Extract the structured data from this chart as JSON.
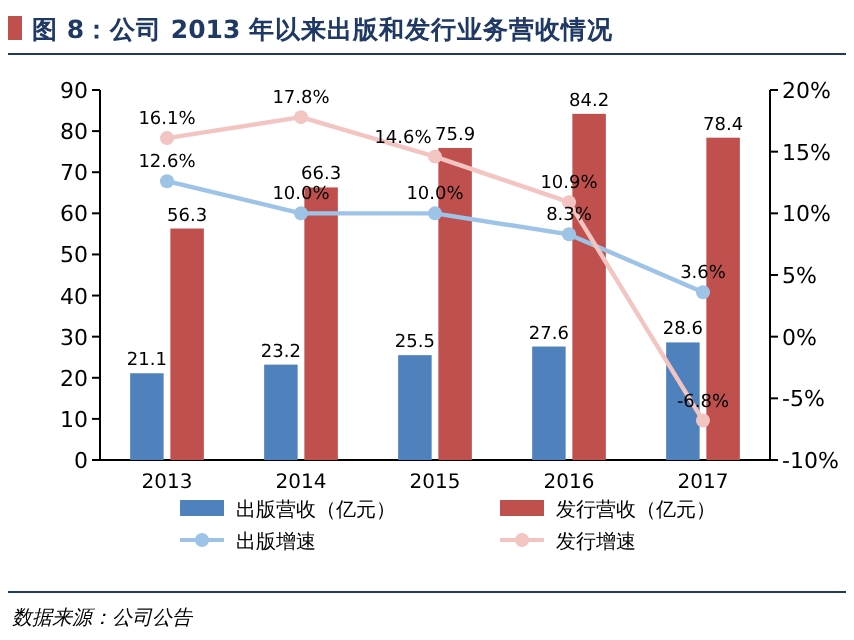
{
  "chart_data": {
    "type": "bar",
    "title": "图 8：公司 2013 年以来出版和发行业务营收情况",
    "annotations": [
      "数据来源：公司公告"
    ],
    "categories": [
      "2013",
      "2014",
      "2015",
      "2016",
      "2017"
    ],
    "series": [
      {
        "name": "出版营收（亿元）",
        "color": "#4f81bd",
        "values": [
          21.1,
          23.2,
          25.5,
          27.6,
          28.6
        ]
      },
      {
        "name": "发行营收（亿元）",
        "color": "#c0504d",
        "values": [
          56.3,
          66.3,
          75.9,
          84.2,
          78.4
        ]
      },
      {
        "name": "出版增速",
        "type": "line",
        "axis": "y2",
        "color": "#9dc3e6",
        "marker": "circle",
        "values": [
          12.6,
          10.0,
          10.0,
          8.3,
          3.6
        ],
        "value_labels": [
          "12.6%",
          "10.0%",
          "10.0%",
          "8.3%",
          "3.6%"
        ]
      },
      {
        "name": "发行增速",
        "type": "line",
        "axis": "y2",
        "color": "#f2c4c2",
        "marker": "circle",
        "values": [
          16.1,
          17.8,
          14.6,
          10.9,
          -6.8
        ],
        "value_labels": [
          "16.1%",
          "17.8%",
          "14.6%",
          "10.9%",
          "-6.8%"
        ]
      }
    ],
    "ylim": [
      0,
      90
    ],
    "yticks": [
      0,
      10,
      20,
      30,
      40,
      50,
      60,
      70,
      80,
      90
    ],
    "y2lim": [
      -10,
      20
    ],
    "y2ticks": [
      {
        "value": -10,
        "label": "-10%"
      },
      {
        "value": -5,
        "label": "-5%"
      },
      {
        "value": 0,
        "label": "0%"
      },
      {
        "value": 5,
        "label": "5%"
      },
      {
        "value": 10,
        "label": "10%"
      },
      {
        "value": 15,
        "label": "15%"
      },
      {
        "value": 20,
        "label": "20%"
      }
    ],
    "data_labels": true,
    "legend": "bottom",
    "grid": false
  }
}
